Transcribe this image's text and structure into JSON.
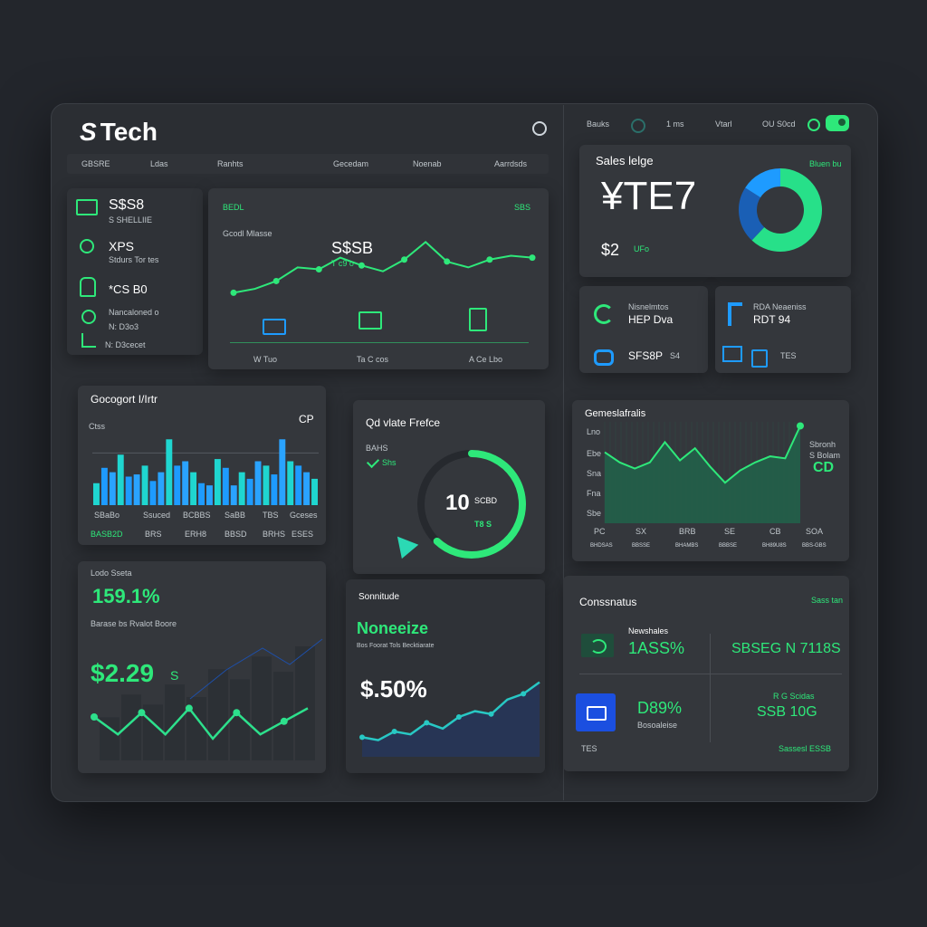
{
  "app": {
    "brand": "Tech",
    "logo_glyph": "S"
  },
  "top_right": {
    "item1": "Bauks",
    "item2": "1 ms",
    "item3": "Vtarl",
    "item4": "OU S0cd"
  },
  "nav": {
    "items": [
      "GBSRE",
      "Ldas",
      "Ranhts",
      "Gecedam",
      "Noenab",
      "Aarrdsds"
    ]
  },
  "left_stats": [
    {
      "value": "S$S8",
      "sub": "S SHELLIIE"
    },
    {
      "value": "XPS",
      "sub": "Stdurs Tor tes"
    },
    {
      "value": "*CS B0",
      "sub": "Nancaloned o"
    },
    {
      "value": "N: D3o3",
      "sub": ""
    },
    {
      "value": "N: D3cecet",
      "sub": ""
    }
  ],
  "main_chart": {
    "header_left": "BEDL",
    "header_right": "SBS",
    "legend": "Gcodl Mlasse",
    "annotation_value": "S$SB",
    "annotation_sub": "T c9 o",
    "xlabels": [
      "W Tuo",
      "Ta C cos",
      "A Ce Lbo"
    ]
  },
  "sales_card": {
    "title": "Sales lelge",
    "badge": "Bluen bu",
    "big_value": "¥TE7",
    "sub_value": "$2",
    "sub_note": "UFo"
  },
  "small_cards": {
    "a_line1": "Nisnelmtos",
    "a_line2": "HEP Dva",
    "b_line1": "RDA Neaeniss",
    "b_line2": "RDT 94",
    "c_value": "SFS8P",
    "c_note": "S4"
  },
  "bar_chart": {
    "title": "Gocogort I/Irtr",
    "badge": "CP",
    "sub": "Ctss",
    "categories": [
      "SBaBo",
      "Ssuced",
      "BCBBS",
      "SaBB",
      "TBS",
      "Gceses"
    ],
    "bottom_labels": [
      "BASB2D",
      "BRS",
      "ERH8",
      "BBSD",
      "BRHS",
      "ESES"
    ]
  },
  "gauge_card": {
    "title": "Qd vlate Frefce",
    "sub": "BAHS",
    "pill": "Shs",
    "value": "10",
    "value_sub": "SCBD",
    "value_note": "T8 S"
  },
  "area_chart": {
    "title": "Gemeslafralis",
    "right_title": "Sbronh",
    "right_sub": "S Bolam",
    "right_value": "CD",
    "ylabels": [
      "Lno",
      "Ebe",
      "Sna",
      "Fna",
      "Sbe"
    ],
    "xlabels": [
      "PC",
      "SX",
      "BRB",
      "SE",
      "CB",
      "SOA"
    ],
    "xsub": [
      "BHDSAS",
      "BBSSE",
      "BHAMBS",
      "BBBSE",
      "BH89U8S",
      "BBS-GBS"
    ]
  },
  "left_bottom": {
    "title": "Lodo Sseta",
    "big_percent": "159.1%",
    "caption": "Barase bs Rvalot Boore",
    "amount": "$2.29",
    "amount_suffix": "S"
  },
  "middle_bottom": {
    "title": "Sonnitude",
    "headline": "Noneeize",
    "caption": "Bos Foorat Tols Becktiarate",
    "value": "$.50%"
  },
  "conversions": {
    "title": "Conssnatus",
    "badge": "Sass tan",
    "row1_label": "Newshales",
    "row1_value": "1ASS%",
    "row1_right": "SBSEG N 7118S",
    "row2_value": "D89%",
    "row2_sub": "Bosoaleise",
    "row2_right": "SSB 10G",
    "row2_right_sub": "R G Scidas",
    "footer_left": "TES",
    "footer_right": "Sassesl ESSB"
  },
  "colors": {
    "accent_green": "#2ee87a",
    "accent_blue": "#1e9bff",
    "bg": "#23262c",
    "card": "#34373c"
  },
  "chart_data": [
    {
      "type": "line",
      "x": [
        1,
        2,
        3,
        4,
        5,
        6,
        7,
        8,
        9,
        10,
        11,
        12,
        13,
        14,
        15
      ],
      "series": [
        {
          "values": [
            18,
            22,
            30,
            44,
            42,
            54,
            46,
            40,
            52,
            70,
            50,
            44,
            52,
            56,
            54
          ]
        }
      ]
    },
    {
      "type": "bar",
      "x": [
        1,
        2,
        3,
        4,
        5,
        6,
        7,
        8,
        9,
        10,
        11,
        12,
        13,
        14,
        15,
        16,
        17,
        18,
        19,
        20,
        21,
        22,
        23,
        24,
        25,
        26,
        27,
        28
      ],
      "series": [
        {
          "values": [
            20,
            34,
            30,
            46,
            26,
            28,
            36,
            22,
            30,
            60,
            36,
            40,
            30,
            20,
            18,
            42,
            34,
            18,
            30,
            24,
            40,
            36,
            28,
            60,
            40,
            36,
            30,
            24
          ]
        }
      ]
    },
    {
      "type": "pie",
      "categories": [
        "a",
        "b",
        "c"
      ],
      "values": [
        62,
        22,
        16
      ]
    },
    {
      "type": "area",
      "x": [
        1,
        2,
        3,
        4,
        5,
        6,
        7,
        8,
        9,
        10,
        11,
        12,
        13,
        14
      ],
      "series": [
        {
          "values": [
            70,
            60,
            54,
            60,
            80,
            62,
            74,
            56,
            40,
            52,
            60,
            66,
            64,
            96
          ]
        }
      ]
    },
    {
      "type": "line",
      "x": [
        1,
        2,
        3,
        4,
        5,
        6,
        7,
        8,
        9,
        10
      ],
      "series": [
        {
          "values": [
            30,
            22,
            32,
            22,
            34,
            20,
            32,
            22,
            28,
            34
          ]
        }
      ]
    },
    {
      "type": "area",
      "x": [
        1,
        2,
        3,
        4,
        5,
        6,
        7,
        8,
        9,
        10,
        11,
        12
      ],
      "series": [
        {
          "values": [
            20,
            18,
            24,
            22,
            30,
            26,
            34,
            38,
            36,
            46,
            50,
            58
          ]
        }
      ]
    }
  ],
  "gauge": {
    "progress": 0.62
  }
}
